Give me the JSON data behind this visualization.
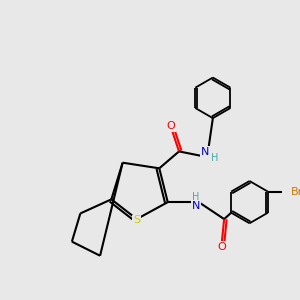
{
  "background_color": "#e8e8e8",
  "bond_color": "#000000",
  "atom_colors": {
    "O": "#ff0000",
    "N": "#0000cc",
    "S": "#cccc00",
    "Br": "#cc7700",
    "H": "#44aaaa",
    "C": "#000000"
  },
  "figsize": [
    3.0,
    3.0
  ],
  "dpi": 100
}
